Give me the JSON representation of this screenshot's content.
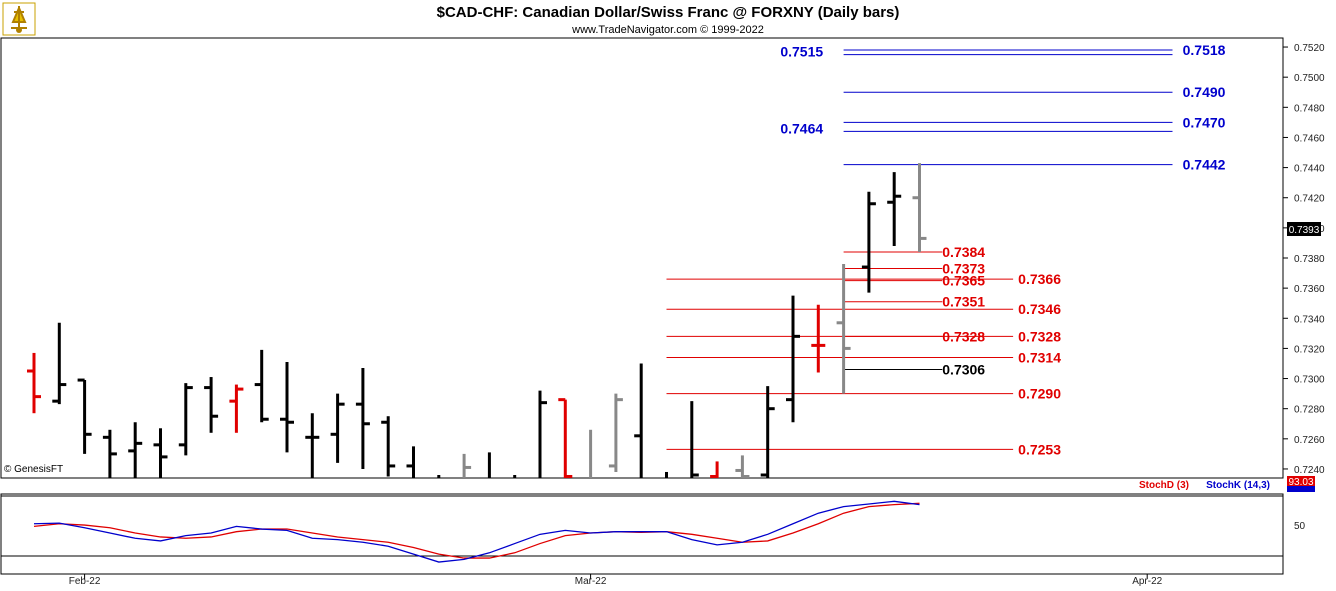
{
  "chart_data": {
    "type": "ohlc",
    "title": "$CAD-CHF:  Canadian Dollar/Swiss Franc @ FORXNY  (Daily bars)",
    "subtitle": "www.TradeNavigator.com © 1999-2022",
    "watermark": "© GenesisFT",
    "last_price_label": "0.7393",
    "price_axis": {
      "ylim": [
        0.7234,
        0.7526
      ],
      "ticks": [
        "0.7240",
        "0.7260",
        "0.7280",
        "0.7300",
        "0.7320",
        "0.7340",
        "0.7360",
        "0.7380",
        "0.7400",
        "0.7420",
        "0.7440",
        "0.7460",
        "0.7480",
        "0.7500",
        "0.7520"
      ]
    },
    "x_axis": {
      "labels": [
        {
          "text": "Feb-22",
          "bar": 2
        },
        {
          "text": "Mar-22",
          "bar": 22
        },
        {
          "text": "Apr-22",
          "bar": 44
        }
      ],
      "total_slots": 48
    },
    "bars": [
      {
        "o": 0.7305,
        "h": 0.7317,
        "l": 0.7277,
        "c": 0.7288,
        "color": "#e00000"
      },
      {
        "o": 0.7285,
        "h": 0.7337,
        "l": 0.7283,
        "c": 0.7296,
        "color": "#000000"
      },
      {
        "o": 0.7299,
        "h": 0.7299,
        "l": 0.725,
        "c": 0.7263,
        "color": "#000000"
      },
      {
        "o": 0.7261,
        "h": 0.7266,
        "l": 0.7233,
        "c": 0.725,
        "color": "#000000"
      },
      {
        "o": 0.7252,
        "h": 0.7271,
        "l": 0.7232,
        "c": 0.7257,
        "color": "#000000"
      },
      {
        "o": 0.7256,
        "h": 0.7267,
        "l": 0.7228,
        "c": 0.7248,
        "color": "#000000"
      },
      {
        "o": 0.7256,
        "h": 0.7297,
        "l": 0.7249,
        "c": 0.7294,
        "color": "#000000"
      },
      {
        "o": 0.7294,
        "h": 0.7301,
        "l": 0.7264,
        "c": 0.7275,
        "color": "#000000"
      },
      {
        "o": 0.7285,
        "h": 0.7296,
        "l": 0.7264,
        "c": 0.7293,
        "color": "#e00000"
      },
      {
        "o": 0.7296,
        "h": 0.7319,
        "l": 0.7271,
        "c": 0.7273,
        "color": "#000000"
      },
      {
        "o": 0.7273,
        "h": 0.7311,
        "l": 0.7251,
        "c": 0.7271,
        "color": "#000000"
      },
      {
        "o": 0.7261,
        "h": 0.7277,
        "l": 0.7234,
        "c": 0.7261,
        "color": "#000000"
      },
      {
        "o": 0.7263,
        "h": 0.729,
        "l": 0.7244,
        "c": 0.7283,
        "color": "#000000"
      },
      {
        "o": 0.7283,
        "h": 0.7307,
        "l": 0.724,
        "c": 0.727,
        "color": "#000000"
      },
      {
        "o": 0.7271,
        "h": 0.7275,
        "l": 0.7235,
        "c": 0.7242,
        "color": "#000000"
      },
      {
        "o": 0.7242,
        "h": 0.7255,
        "l": 0.723,
        "c": 0.7232,
        "color": "#000000"
      },
      {
        "o": 0.7224,
        "h": 0.7236,
        "l": 0.7213,
        "c": 0.7231,
        "color": "#000000"
      },
      {
        "o": 0.7217,
        "h": 0.725,
        "l": 0.7215,
        "c": 0.7241,
        "color": "#888888"
      },
      {
        "o": 0.7225,
        "h": 0.7251,
        "l": 0.7212,
        "c": 0.7223,
        "color": "#000000"
      },
      {
        "o": 0.7229,
        "h": 0.7236,
        "l": 0.722,
        "c": 0.7232,
        "color": "#000000"
      },
      {
        "o": 0.7232,
        "h": 0.7292,
        "l": 0.7224,
        "c": 0.7284,
        "color": "#000000"
      },
      {
        "o": 0.7286,
        "h": 0.7286,
        "l": 0.722,
        "c": 0.7235,
        "color": "#e00000"
      },
      {
        "o": 0.7224,
        "h": 0.7266,
        "l": 0.7218,
        "c": 0.7229,
        "color": "#888888"
      },
      {
        "o": 0.7242,
        "h": 0.729,
        "l": 0.7238,
        "c": 0.7286,
        "color": "#888888"
      },
      {
        "o": 0.7262,
        "h": 0.731,
        "l": 0.7233,
        "c": 0.7234,
        "color": "#000000"
      },
      {
        "o": 0.7234,
        "h": 0.7238,
        "l": 0.7216,
        "c": 0.7233,
        "color": "#000000"
      },
      {
        "o": 0.7234,
        "h": 0.7285,
        "l": 0.7222,
        "c": 0.7236,
        "color": "#000000"
      },
      {
        "o": 0.7235,
        "h": 0.7245,
        "l": 0.7217,
        "c": 0.7219,
        "color": "#e00000"
      },
      {
        "o": 0.7239,
        "h": 0.7249,
        "l": 0.7222,
        "c": 0.7235,
        "color": "#888888"
      },
      {
        "o": 0.7236,
        "h": 0.7295,
        "l": 0.7228,
        "c": 0.728,
        "color": "#000000"
      },
      {
        "o": 0.7286,
        "h": 0.7355,
        "l": 0.7271,
        "c": 0.7328,
        "color": "#000000"
      },
      {
        "o": 0.7322,
        "h": 0.7349,
        "l": 0.7304,
        "c": 0.7322,
        "color": "#e00000"
      },
      {
        "o": 0.7337,
        "h": 0.7376,
        "l": 0.729,
        "c": 0.732,
        "color": "#888888"
      },
      {
        "o": 0.7374,
        "h": 0.7424,
        "l": 0.7357,
        "c": 0.7416,
        "color": "#000000"
      },
      {
        "o": 0.7417,
        "h": 0.7437,
        "l": 0.7388,
        "c": 0.7421,
        "color": "#000000"
      },
      {
        "o": 0.742,
        "h": 0.7443,
        "l": 0.7384,
        "c": 0.7393,
        "color": "#888888"
      }
    ],
    "projection_lines": [
      {
        "price": 0.7518,
        "label": "0.7518",
        "start_bar": 32,
        "end_bar": 45,
        "label_bar": 45.4,
        "color": "#0000cc"
      },
      {
        "price": 0.7515,
        "label": "0.7515",
        "start_bar": 32,
        "end_bar": 45,
        "label_bar": 29.5,
        "color": "#0000cc"
      },
      {
        "price": 0.749,
        "label": "0.7490",
        "start_bar": 32,
        "end_bar": 45,
        "label_bar": 45.4,
        "color": "#0000cc"
      },
      {
        "price": 0.747,
        "label": "0.7470",
        "start_bar": 32,
        "end_bar": 45,
        "label_bar": 45.4,
        "color": "#0000cc"
      },
      {
        "price": 0.7464,
        "label": "0.7464",
        "start_bar": 32,
        "end_bar": 45,
        "label_bar": 29.5,
        "color": "#0000cc"
      },
      {
        "price": 0.7442,
        "label": "0.7442",
        "start_bar": 32,
        "end_bar": 45,
        "label_bar": 45.4,
        "color": "#0000cc"
      },
      {
        "price": 0.7384,
        "label": "0.7384",
        "start_bar": 32,
        "end_bar": 35.9,
        "label_bar": 35.9,
        "color": "#e00000"
      },
      {
        "price": 0.7373,
        "label": "0.7373",
        "start_bar": 32,
        "end_bar": 35.9,
        "label_bar": 35.9,
        "color": "#e00000"
      },
      {
        "price": 0.7365,
        "label": "0.7365",
        "start_bar": 32,
        "end_bar": 35.9,
        "label_bar": 35.9,
        "color": "#e00000"
      },
      {
        "price": 0.7366,
        "label": "0.7366",
        "start_bar": 25,
        "end_bar": 38.7,
        "label_bar": 38.9,
        "color": "#e00000"
      },
      {
        "price": 0.7351,
        "label": "0.7351",
        "start_bar": 32,
        "end_bar": 35.9,
        "label_bar": 35.9,
        "color": "#e00000"
      },
      {
        "price": 0.7346,
        "label": "0.7346",
        "start_bar": 25,
        "end_bar": 38.7,
        "label_bar": 38.9,
        "color": "#e00000"
      },
      {
        "price": 0.7328,
        "label": "0.7328",
        "start_bar": 32,
        "end_bar": 35.9,
        "label_bar": 35.9,
        "color": "#e00000"
      },
      {
        "price": 0.7328,
        "label": "0.7328",
        "start_bar": 25,
        "end_bar": 38.7,
        "label_bar": 38.9,
        "color": "#e00000"
      },
      {
        "price": 0.7314,
        "label": "0.7314",
        "start_bar": 25,
        "end_bar": 38.7,
        "label_bar": 38.9,
        "color": "#e00000"
      },
      {
        "price": 0.7306,
        "label": "0.7306",
        "start_bar": 32,
        "end_bar": 35.9,
        "label_bar": 35.9,
        "color": "#000000"
      },
      {
        "price": 0.729,
        "label": "0.7290",
        "start_bar": 25,
        "end_bar": 38.7,
        "label_bar": 38.9,
        "color": "#e00000"
      },
      {
        "price": 0.7253,
        "label": "0.7253",
        "start_bar": 25,
        "end_bar": 38.7,
        "label_bar": 38.9,
        "color": "#e00000"
      }
    ],
    "stochastic": {
      "ylim": [
        0,
        100
      ],
      "ticks": [
        "50"
      ],
      "legend": [
        {
          "name": "StochD (3)",
          "color": "#e00000"
        },
        {
          "name": "StochK (14,3)",
          "color": "#0000cc"
        }
      ],
      "value_label": "93.03",
      "stoch_k": [
        64,
        65,
        58,
        50,
        42,
        38,
        46,
        50,
        60,
        56,
        54,
        42,
        40,
        36,
        30,
        18,
        6,
        10,
        20,
        34,
        48,
        54,
        50,
        52,
        52,
        52,
        40,
        32,
        36,
        48,
        64,
        80,
        90,
        94,
        98,
        93
      ],
      "stoch_d": [
        60,
        64,
        62,
        58,
        50,
        44,
        42,
        44,
        52,
        56,
        56,
        50,
        44,
        40,
        36,
        28,
        18,
        12,
        12,
        20,
        34,
        46,
        50,
        52,
        51,
        52,
        48,
        42,
        36,
        38,
        50,
        64,
        80,
        90,
        93,
        95
      ]
    }
  }
}
